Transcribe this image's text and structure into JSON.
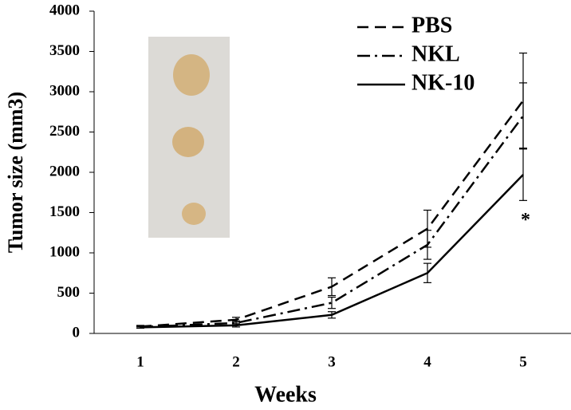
{
  "chart_data": {
    "type": "line",
    "y_label": "Tumor size (mm3)",
    "x_label": "Weeks",
    "categories": [
      "1",
      "2",
      "3",
      "4",
      "5"
    ],
    "series": [
      {
        "name": "PBS",
        "color": "#000000",
        "linestyle": "dashed",
        "values": [
          85,
          170,
          580,
          1300,
          2890
        ],
        "errors": [
          15,
          30,
          110,
          230,
          590
        ]
      },
      {
        "name": "NKL",
        "color": "#000000",
        "linestyle": "dashdot",
        "values": [
          80,
          130,
          380,
          1100,
          2700
        ],
        "errors": [
          15,
          25,
          70,
          180,
          410
        ]
      },
      {
        "name": "NK-10",
        "color": "#000000",
        "linestyle": "solid",
        "values": [
          75,
          100,
          230,
          750,
          1970
        ],
        "errors": [
          10,
          20,
          40,
          120,
          320
        ]
      }
    ],
    "annotations": [
      {
        "text": "*",
        "category": "5"
      }
    ],
    "ylim": [
      0,
      4000
    ],
    "yticks": [
      0,
      500,
      1000,
      1500,
      2000,
      2500,
      3000,
      3500,
      4000
    ],
    "grid": false
  }
}
